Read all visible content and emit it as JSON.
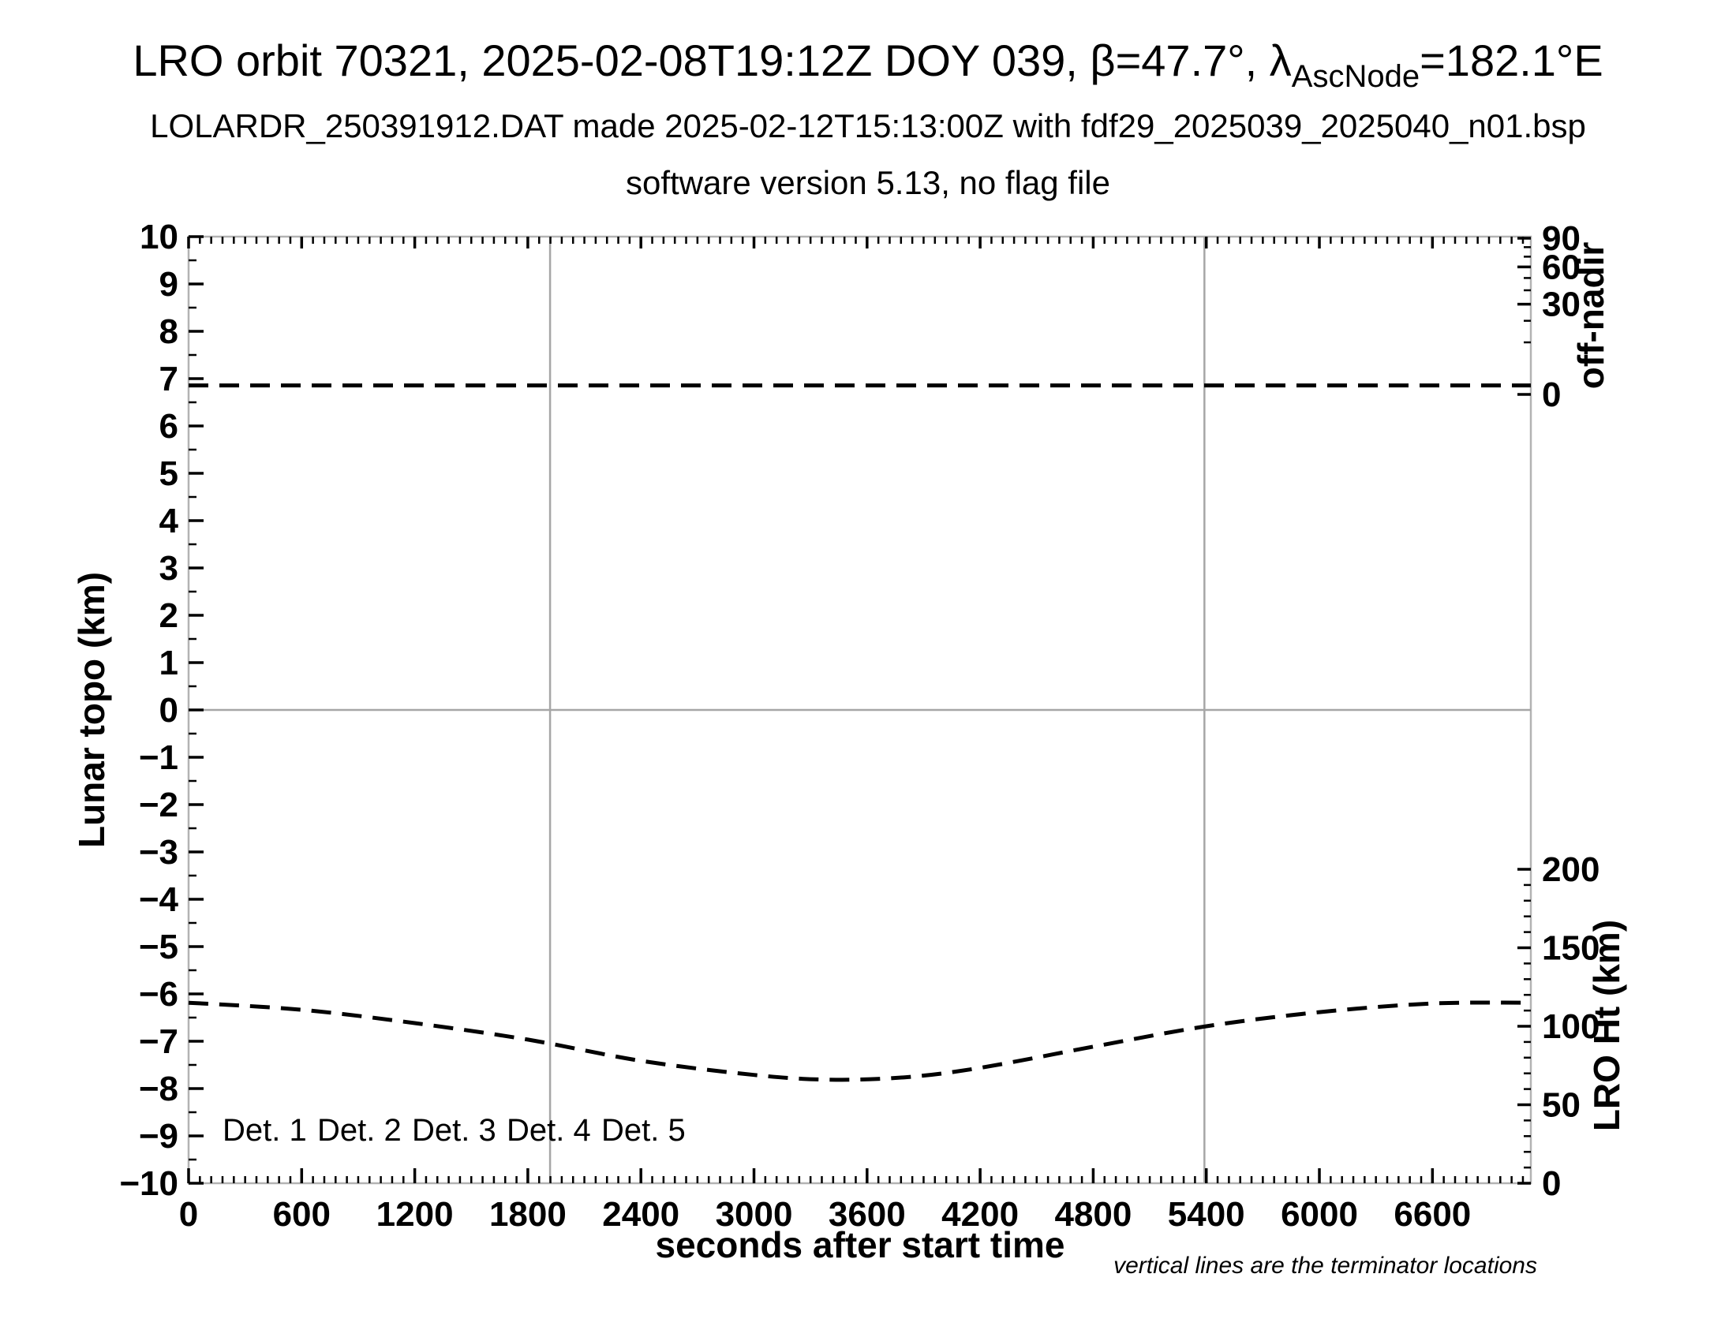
{
  "header": {
    "title_prefix": "LRO orbit 70321, 2025-02-08T19:12Z DOY 039, β=47.7°, λ",
    "title_sub": "AscNode",
    "title_suffix": "=182.1°E",
    "line2": "LOLARDR_250391912.DAT made 2025-02-12T15:13:00Z with fdf29_2025039_2025040_n01.bsp",
    "line3": "software version 5.13, no flag file"
  },
  "chart_data": {
    "type": "line",
    "title": "LRO orbit 70321, 2025-02-08T19:12Z DOY 039, β=47.7°, λAscNode=182.1°E",
    "x_axis": {
      "label": "seconds after start time",
      "range": [
        0,
        7122
      ],
      "major_ticks": [
        0,
        600,
        1200,
        1800,
        2400,
        3000,
        3600,
        4200,
        4800,
        5400,
        6000,
        6600
      ],
      "minor_tick_interval": 60,
      "grid": false
    },
    "y_left_axis": {
      "label": "Lunar topo (km)",
      "range": [
        -10,
        10
      ],
      "major_ticks": [
        -10,
        -9,
        -8,
        -7,
        -6,
        -5,
        -4,
        -3,
        -2,
        -1,
        0,
        1,
        2,
        3,
        4,
        5,
        6,
        7,
        8,
        9,
        10
      ],
      "minor_tick_interval": 0.5,
      "zero_line": true
    },
    "y_right_off_nadir_axis": {
      "label": "off-nadir",
      "scale": "sqrt",
      "range": [
        0,
        90
      ],
      "major_ticks": [
        90,
        60,
        30,
        0
      ],
      "minor_ticks": [
        80,
        70,
        50,
        40,
        20,
        10
      ]
    },
    "y_right_height_axis": {
      "label": "LRO Ht (km)",
      "range": [
        0,
        200
      ],
      "major_ticks": [
        200,
        150,
        100,
        50,
        0
      ],
      "minor_tick_interval": 10
    },
    "terminator_lines_seconds": [
      1918,
      5390
    ],
    "series": [
      {
        "name": "off-nadir angle",
        "axis": "off_nadir",
        "unit": "deg",
        "style": "dashed",
        "color": "#000000",
        "x": [
          0,
          7122
        ],
        "y": [
          0.3,
          0.3
        ]
      },
      {
        "name": "LRO height",
        "axis": "height",
        "unit": "km",
        "style": "dashed",
        "color": "#000000",
        "x": [
          0,
          600,
          1200,
          1800,
          2400,
          3000,
          3400,
          3800,
          4200,
          4800,
          5400,
          6000,
          6600,
          7122
        ],
        "y": [
          115,
          110.5,
          102,
          91.5,
          78,
          69,
          66,
          67.5,
          73.5,
          87,
          100,
          109,
          114.5,
          115
        ]
      }
    ],
    "legend": {
      "position": "bottom-left-inside",
      "items": [
        {
          "label": "Det. 1",
          "color": "#000000"
        },
        {
          "label": "Det. 2",
          "color": "#0000ff"
        },
        {
          "label": "Det. 3",
          "color": "#00ee00"
        },
        {
          "label": "Det. 4",
          "color": "#ffa500"
        },
        {
          "label": "Det. 5",
          "color": "#ff0000"
        }
      ]
    },
    "footnote": "vertical lines are the terminator locations"
  },
  "colors": {
    "background": "#ffffff",
    "frame": "#b3b3b3",
    "grid": "#a6a6a6",
    "ticks": "#000000",
    "data": "#000000"
  }
}
